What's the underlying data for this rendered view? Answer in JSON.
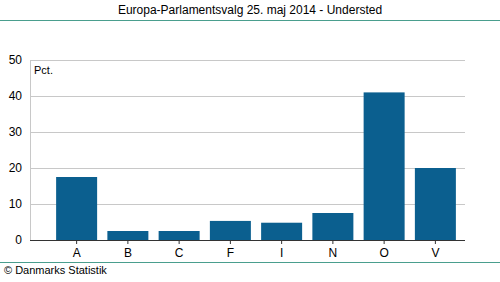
{
  "chart_data": {
    "type": "bar",
    "title": "Europa-Parlamentsvalg 25. maj 2014 - Understed",
    "y_label": "Pct.",
    "source": "© Danmarks Statistik",
    "categories": [
      "A",
      "B",
      "C",
      "F",
      "I",
      "N",
      "O",
      "V"
    ],
    "values": [
      17.5,
      2.5,
      2.5,
      5.3,
      4.8,
      7.5,
      41,
      20
    ],
    "color": "#0b5f8f",
    "ylim": [
      0,
      50
    ],
    "yticks": [
      0,
      10,
      20,
      30,
      40,
      50
    ],
    "grid": true
  }
}
